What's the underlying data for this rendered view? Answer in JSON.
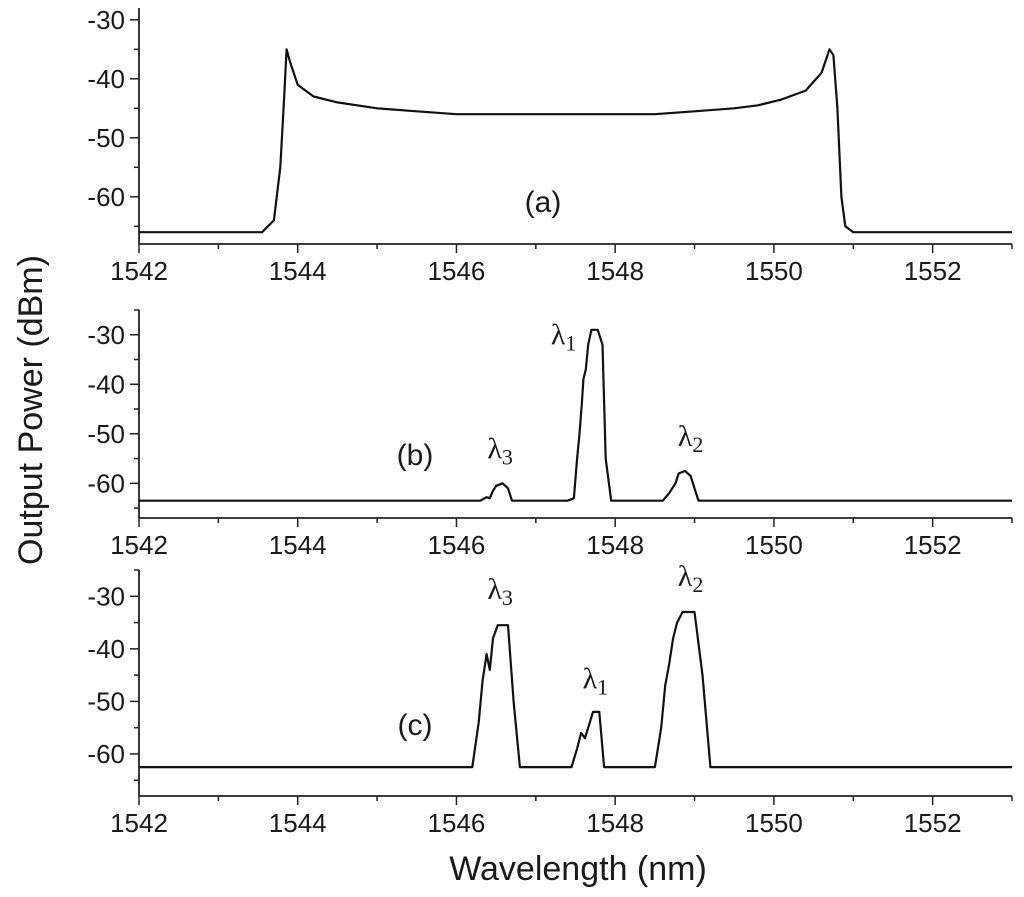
{
  "figure": {
    "ylabel": "Output Power (dBm)",
    "xlabel": "Wavelength (nm)"
  },
  "chart_data": [
    {
      "type": "line",
      "panel_label": "(a)",
      "xlim": [
        1542,
        1553
      ],
      "ylim": [
        -68,
        -28
      ],
      "xticks": [
        1542,
        1544,
        1546,
        1548,
        1550,
        1552
      ],
      "yticks": [
        -30,
        -40,
        -50,
        -60
      ],
      "series": [
        {
          "x": [
            1542.0,
            1543.0,
            1543.55,
            1543.7,
            1543.78,
            1543.83,
            1543.86,
            1543.9,
            1544.0,
            1544.2,
            1544.5,
            1545.0,
            1545.5,
            1546.0,
            1546.5,
            1547.0,
            1547.5,
            1548.0,
            1548.5,
            1549.0,
            1549.5,
            1549.8,
            1550.1,
            1550.4,
            1550.6,
            1550.7,
            1550.75,
            1550.8,
            1550.85,
            1550.9,
            1551.0,
            1551.5,
            1552.0,
            1553.0
          ],
          "y": [
            -66,
            -66,
            -66,
            -64,
            -55,
            -43,
            -35,
            -37,
            -41,
            -43,
            -44,
            -45,
            -45.5,
            -46,
            -46,
            -46,
            -46,
            -46,
            -46,
            -45.5,
            -45,
            -44.5,
            -43.5,
            -42,
            -39,
            -35,
            -36,
            -45,
            -60,
            -65,
            -66,
            -66,
            -66,
            -66
          ]
        }
      ],
      "annotations": []
    },
    {
      "type": "line",
      "panel_label": "(b)",
      "xlim": [
        1542,
        1553
      ],
      "ylim": [
        -67,
        -25
      ],
      "xticks": [
        1542,
        1544,
        1546,
        1548,
        1550,
        1552
      ],
      "yticks": [
        -30,
        -40,
        -50,
        -60
      ],
      "series": [
        {
          "x": [
            1542.0,
            1546.3,
            1546.38,
            1546.42,
            1546.46,
            1546.5,
            1546.58,
            1546.65,
            1546.7,
            1547.4,
            1547.48,
            1547.52,
            1547.55,
            1547.58,
            1547.6,
            1547.63,
            1547.66,
            1547.7,
            1547.78,
            1547.84,
            1547.88,
            1547.95,
            1548.6,
            1548.68,
            1548.72,
            1548.76,
            1548.8,
            1548.88,
            1548.95,
            1549.0,
            1549.05,
            1553.0
          ],
          "y": [
            -63.5,
            -63.5,
            -62.8,
            -63,
            -61.5,
            -60.5,
            -60,
            -61,
            -63.5,
            -63.5,
            -63,
            -55,
            -50,
            -44,
            -39,
            -37,
            -32,
            -29,
            -29,
            -32,
            -55,
            -63.5,
            -63.5,
            -62,
            -61,
            -60,
            -58,
            -57.5,
            -58.5,
            -61,
            -63.5,
            -63.5
          ]
        }
      ],
      "annotations": [
        {
          "label": "λ3",
          "x": 1546.55,
          "y": -55
        },
        {
          "label": "λ1",
          "x": 1547.35,
          "y": -32
        },
        {
          "label": "λ2",
          "x": 1548.95,
          "y": -52.5
        }
      ]
    },
    {
      "type": "line",
      "panel_label": "(c)",
      "xlim": [
        1542,
        1553
      ],
      "ylim": [
        -68,
        -25
      ],
      "xticks": [
        1542,
        1544,
        1546,
        1548,
        1550,
        1552
      ],
      "yticks": [
        -30,
        -40,
        -50,
        -60
      ],
      "series": [
        {
          "x": [
            1542.0,
            1546.2,
            1546.28,
            1546.33,
            1546.38,
            1546.42,
            1546.46,
            1546.52,
            1546.65,
            1546.72,
            1546.8,
            1547.45,
            1547.52,
            1547.57,
            1547.62,
            1547.66,
            1547.72,
            1547.8,
            1547.86,
            1548.5,
            1548.58,
            1548.63,
            1548.68,
            1548.73,
            1548.78,
            1548.85,
            1549.0,
            1549.1,
            1549.2,
            1553.0
          ],
          "y": [
            -62.5,
            -62.5,
            -54,
            -46,
            -41,
            -44,
            -38,
            -35.5,
            -35.5,
            -50,
            -62.5,
            -62.5,
            -59,
            -56,
            -57,
            -55,
            -52,
            -52,
            -62.5,
            -62.5,
            -55,
            -47,
            -43,
            -38,
            -35,
            -33,
            -33,
            -45,
            -62.5,
            -62.5
          ]
        }
      ],
      "annotations": [
        {
          "label": "λ3",
          "x": 1546.55,
          "y": -30.5
        },
        {
          "label": "λ1",
          "x": 1547.75,
          "y": -47.5
        },
        {
          "label": "λ2",
          "x": 1548.95,
          "y": -28
        }
      ]
    }
  ]
}
